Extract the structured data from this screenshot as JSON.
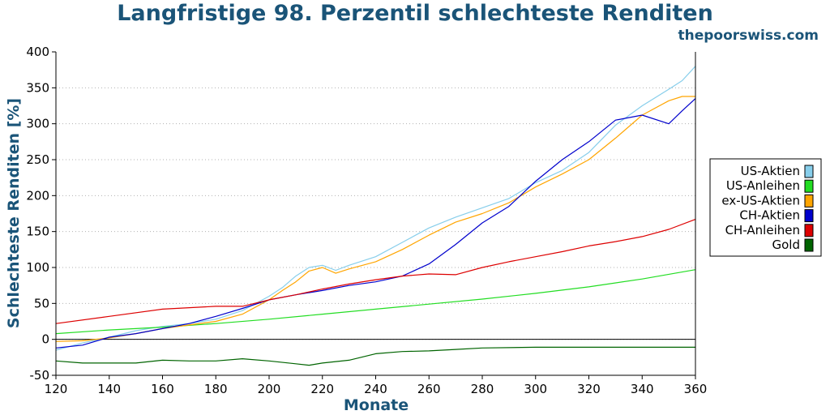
{
  "header": {
    "title": "Langfristige 98. Perzentil schlechteste Renditen",
    "watermark": "thepoorswiss.com"
  },
  "chart_data": {
    "type": "line",
    "title": "Langfristige 98. Perzentil schlechteste Renditen",
    "xlabel": "Monate",
    "ylabel": "Schlechteste Renditen [%]",
    "xlim": [
      120,
      360
    ],
    "ylim": [
      -50,
      400
    ],
    "xticks": [
      120,
      140,
      160,
      180,
      200,
      220,
      240,
      260,
      280,
      300,
      320,
      340,
      360
    ],
    "yticks": [
      -50,
      0,
      50,
      100,
      150,
      200,
      250,
      300,
      350,
      400
    ],
    "grid": "horizontal-dotted",
    "legend": "right",
    "series": [
      {
        "name": "US-Aktien",
        "color": "#87ceeb",
        "x": [
          120,
          130,
          140,
          150,
          160,
          170,
          180,
          190,
          200,
          205,
          210,
          215,
          220,
          225,
          230,
          240,
          250,
          260,
          270,
          280,
          290,
          300,
          310,
          320,
          330,
          340,
          350,
          355,
          360
        ],
        "y": [
          -15,
          -5,
          3,
          12,
          18,
          22,
          28,
          40,
          60,
          72,
          88,
          100,
          103,
          96,
          103,
          115,
          135,
          155,
          170,
          183,
          196,
          218,
          235,
          260,
          298,
          325,
          348,
          360,
          380
        ]
      },
      {
        "name": "US-Anleihen",
        "color": "#22dd22",
        "x": [
          120,
          140,
          160,
          180,
          200,
          220,
          240,
          260,
          280,
          300,
          320,
          340,
          360
        ],
        "y": [
          8,
          13,
          17,
          22,
          28,
          35,
          42,
          49,
          56,
          64,
          73,
          84,
          97
        ]
      },
      {
        "name": "ex-US-Aktien",
        "color": "#ffa500",
        "x": [
          120,
          130,
          140,
          150,
          160,
          170,
          180,
          190,
          200,
          205,
          210,
          215,
          220,
          225,
          230,
          240,
          250,
          260,
          270,
          280,
          290,
          300,
          310,
          320,
          330,
          340,
          350,
          355,
          360
        ],
        "y": [
          -3,
          -2,
          2,
          8,
          15,
          20,
          25,
          35,
          55,
          68,
          80,
          95,
          100,
          92,
          98,
          108,
          125,
          145,
          163,
          175,
          190,
          212,
          230,
          250,
          280,
          312,
          332,
          338,
          338
        ]
      },
      {
        "name": "CH-Aktien",
        "color": "#0000cc",
        "x": [
          120,
          130,
          140,
          150,
          160,
          170,
          180,
          190,
          200,
          210,
          220,
          230,
          240,
          250,
          260,
          270,
          280,
          290,
          300,
          310,
          320,
          330,
          340,
          350,
          355,
          360
        ],
        "y": [
          -12,
          -8,
          3,
          8,
          15,
          22,
          32,
          43,
          55,
          62,
          68,
          75,
          80,
          88,
          105,
          132,
          162,
          185,
          220,
          250,
          275,
          305,
          312,
          300,
          318,
          335
        ]
      },
      {
        "name": "CH-Anleihen",
        "color": "#dd0000",
        "x": [
          120,
          140,
          160,
          180,
          190,
          200,
          210,
          220,
          230,
          240,
          250,
          260,
          270,
          280,
          290,
          300,
          310,
          320,
          330,
          340,
          350,
          360
        ],
        "y": [
          22,
          32,
          42,
          46,
          46,
          55,
          62,
          70,
          77,
          83,
          88,
          91,
          90,
          100,
          108,
          115,
          122,
          130,
          136,
          143,
          153,
          167
        ]
      },
      {
        "name": "Gold",
        "color": "#006400",
        "x": [
          120,
          130,
          140,
          150,
          160,
          170,
          180,
          190,
          200,
          210,
          215,
          220,
          230,
          240,
          250,
          260,
          270,
          280,
          300,
          320,
          340,
          360
        ],
        "y": [
          -30,
          -33,
          -33,
          -33,
          -29,
          -30,
          -30,
          -27,
          -30,
          -34,
          -36,
          -33,
          -29,
          -20,
          -17,
          -16,
          -14,
          -12,
          -11,
          -11,
          -11,
          -11
        ]
      }
    ]
  }
}
